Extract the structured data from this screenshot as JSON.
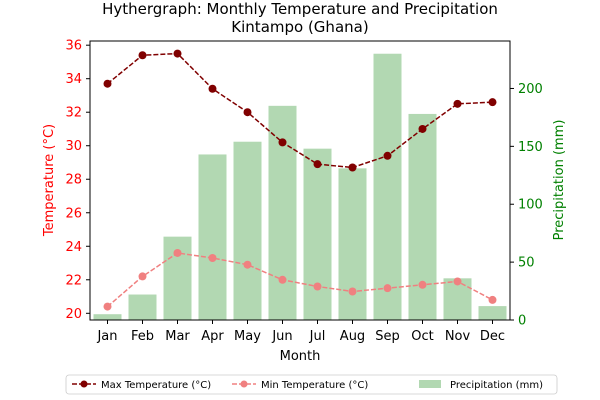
{
  "chart_data": {
    "type": "bar+line",
    "title": "Hythergraph: Monthly Temperature and Precipitation",
    "subtitle": "Kintampo (Ghana)",
    "xlabel": "Month",
    "ylabel_left": "Temperature (°C)",
    "ylabel_right": "Precipitation (mm)",
    "categories": [
      "Jan",
      "Feb",
      "Mar",
      "Apr",
      "May",
      "Jun",
      "Jul",
      "Aug",
      "Sep",
      "Oct",
      "Nov",
      "Dec"
    ],
    "ylim_left": [
      19.6,
      36.25
    ],
    "yticks_left": [
      20,
      22,
      24,
      26,
      28,
      30,
      32,
      34,
      36
    ],
    "ylim_right": [
      0,
      241
    ],
    "yticks_right": [
      0,
      50,
      100,
      150,
      200
    ],
    "series": [
      {
        "name": "Max Temperature (°C)",
        "kind": "line",
        "axis": "left",
        "color": "#800000",
        "linestyle": "dashed",
        "marker": "circle",
        "values": [
          33.7,
          35.4,
          35.5,
          33.4,
          32.0,
          30.2,
          28.9,
          28.7,
          29.4,
          31.0,
          32.5,
          32.6
        ]
      },
      {
        "name": "Min Temperature (°C)",
        "kind": "line",
        "axis": "left",
        "color": "#f08080",
        "linestyle": "dashed",
        "marker": "circle",
        "values": [
          20.4,
          22.2,
          23.6,
          23.3,
          22.9,
          22.0,
          21.6,
          21.3,
          21.5,
          21.7,
          21.9,
          20.8
        ]
      },
      {
        "name": "Precipitation (mm)",
        "kind": "bar",
        "axis": "right",
        "color": "#b2d8b2",
        "values": [
          5,
          22,
          72,
          143,
          154,
          185,
          148,
          131,
          230,
          178,
          36,
          12
        ]
      }
    ],
    "colors": {
      "left_axis": "#ff0000",
      "right_axis": "#008000"
    },
    "legend_position": "bottom",
    "grid": false
  }
}
